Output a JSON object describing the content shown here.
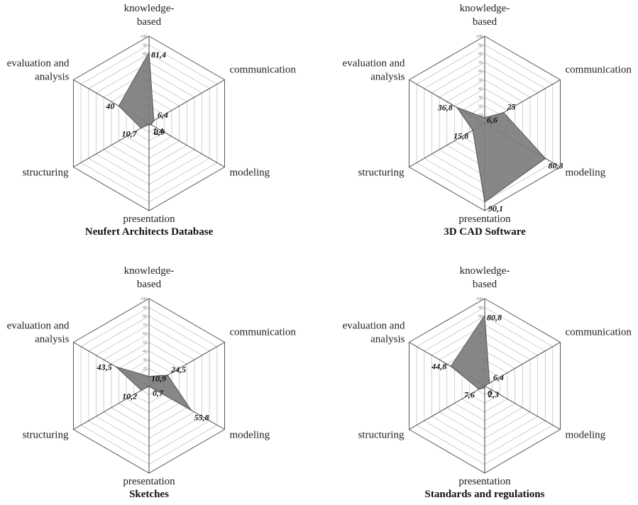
{
  "chart_data": [
    {
      "type": "radar",
      "title": "Neufert Architects Database",
      "axes": [
        [
          "knowledge-",
          "based"
        ],
        [
          "communication"
        ],
        [
          "modeling"
        ],
        [
          "presentation"
        ],
        [
          "structuring"
        ],
        [
          "evaluation and",
          "analysis"
        ]
      ],
      "values": [
        81.4,
        6.4,
        2.9,
        1.4,
        10.7,
        40
      ],
      "value_labels": [
        "81,4",
        "6,4",
        "2,9",
        "1,4",
        "10,7",
        "40"
      ],
      "range": [
        0,
        100
      ],
      "ticks": [
        "0",
        "10",
        "20",
        "30",
        "40",
        "50",
        "60",
        "70",
        "80",
        "90",
        "100"
      ]
    },
    {
      "type": "radar",
      "title": "3D CAD Software",
      "axes": [
        [
          "knowledge-",
          "based"
        ],
        [
          "communication"
        ],
        [
          "modeling"
        ],
        [
          "presentation"
        ],
        [
          "structuring"
        ],
        [
          "evaluation and",
          "analysis"
        ]
      ],
      "values": [
        6.6,
        25,
        80.3,
        90.1,
        15.8,
        36.8
      ],
      "value_labels": [
        "6,6",
        "25",
        "80,3",
        "90,1",
        "15,8",
        "36,8"
      ],
      "range": [
        0,
        100
      ],
      "ticks": [
        "0",
        "10",
        "20",
        "30",
        "40",
        "50",
        "60",
        "70",
        "80",
        "90",
        "100"
      ]
    },
    {
      "type": "radar",
      "title": "Sketches",
      "axes": [
        [
          "knowledge-",
          "based"
        ],
        [
          "communication"
        ],
        [
          "modeling"
        ],
        [
          "presentation"
        ],
        [
          "structuring"
        ],
        [
          "evaluation and",
          "analysis"
        ]
      ],
      "values": [
        10.9,
        24.5,
        55.8,
        0.7,
        10.2,
        43.5
      ],
      "value_labels": [
        "10,9",
        "24,5",
        "55,8",
        "0,7",
        "10,2",
        "43,5"
      ],
      "range": [
        0,
        100
      ],
      "ticks": [
        "0",
        "10",
        "20",
        "30",
        "40",
        "50",
        "60",
        "70",
        "80",
        "90",
        "100"
      ]
    },
    {
      "type": "radar",
      "title": "Standards and regulations",
      "axes": [
        [
          "knowledge-",
          "based"
        ],
        [
          "communication"
        ],
        [
          "modeling"
        ],
        [
          "presentation"
        ],
        [
          "structuring"
        ],
        [
          "evaluation and",
          "analysis"
        ]
      ],
      "values": [
        80.8,
        6.4,
        0,
        2.3,
        7.6,
        44.8
      ],
      "value_labels": [
        "80,8",
        "6,4",
        "0",
        "2,3",
        "7,6",
        "44,8"
      ],
      "range": [
        0,
        100
      ],
      "ticks": [
        "0",
        "10",
        "20",
        "30",
        "40",
        "50",
        "60",
        "70",
        "80",
        "90",
        "100"
      ]
    }
  ]
}
